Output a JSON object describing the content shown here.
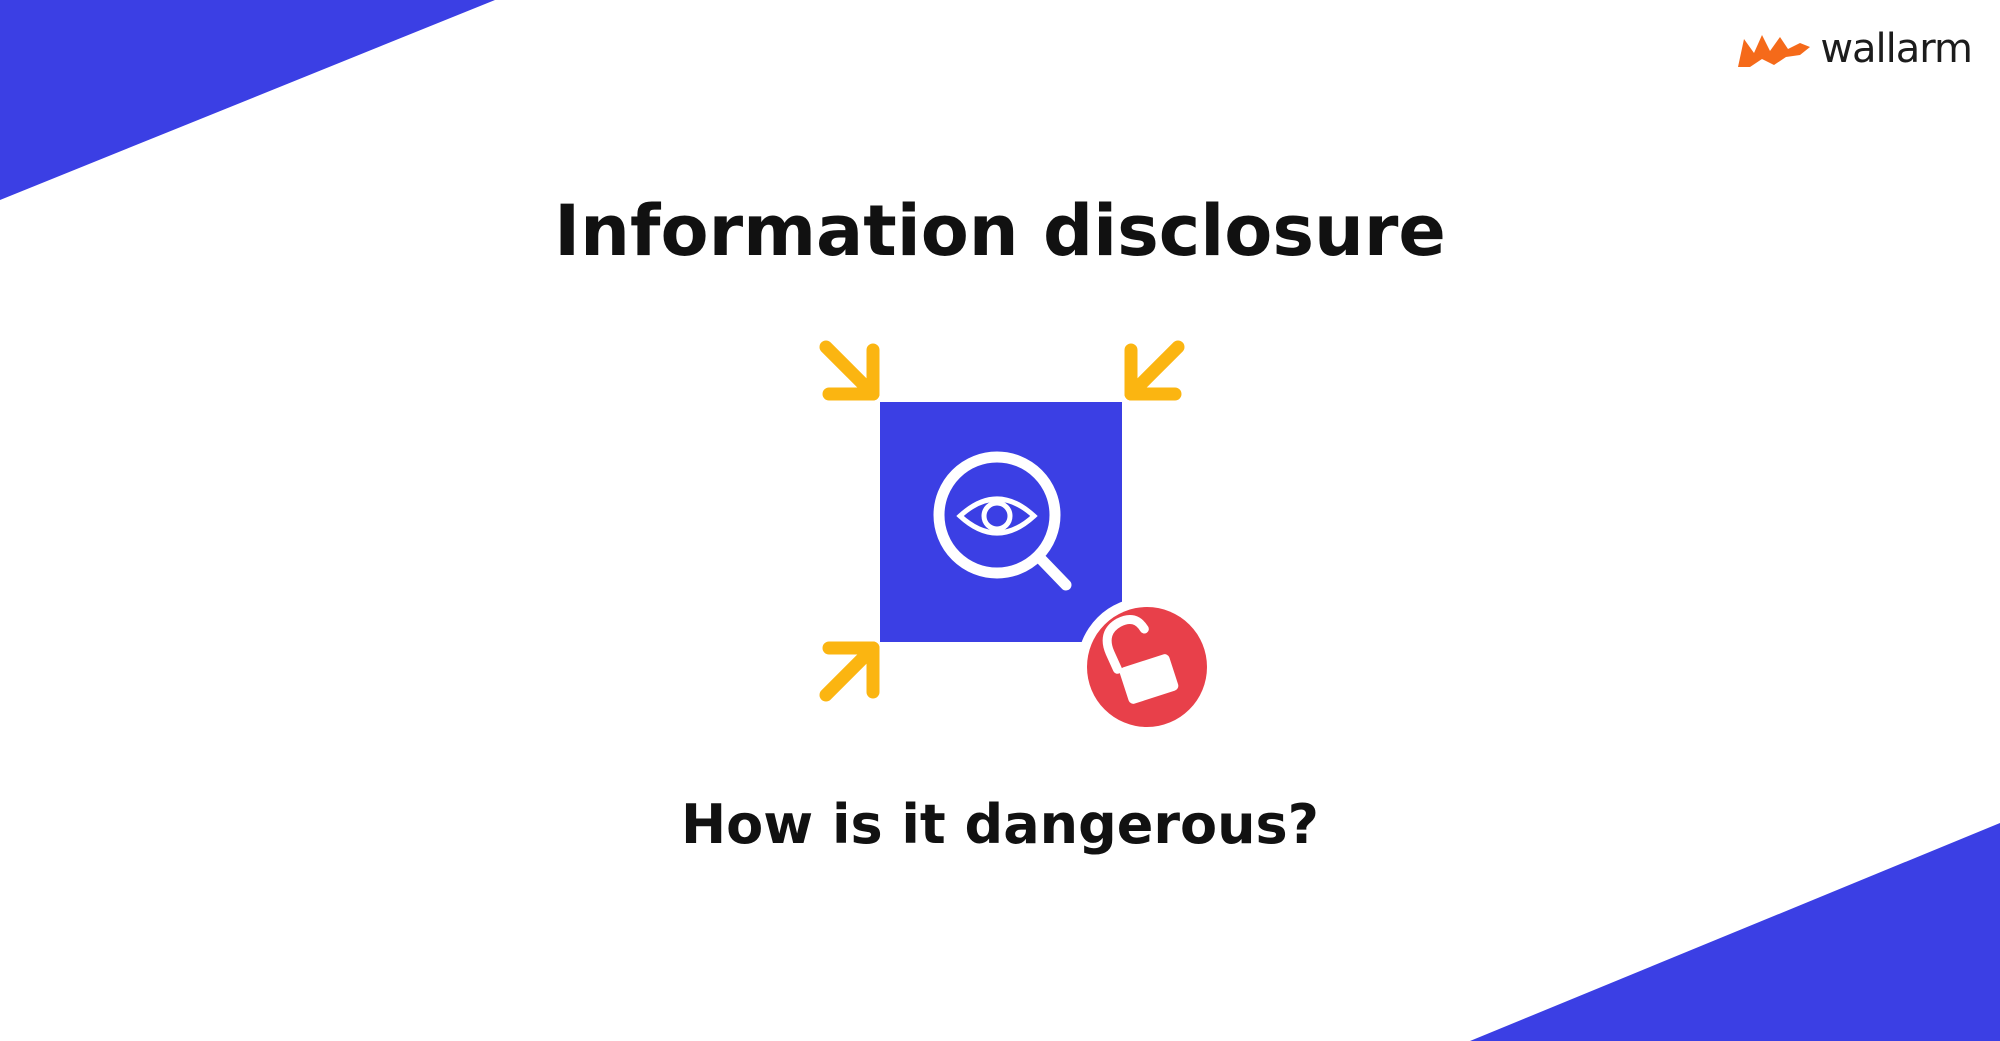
{
  "brand": {
    "name": "wallarm",
    "logo_color": "#f56a1a"
  },
  "title": "Information disclosure",
  "subtitle": "How is it dangerous?",
  "colors": {
    "accent_blue": "#3b3fe4",
    "arrow_yellow": "#fbb511",
    "lock_red": "#e8404a",
    "text": "#111111"
  },
  "icons": [
    "magnifier-eye-icon",
    "unlocked-padlock-icon",
    "inward-arrow-icon"
  ]
}
